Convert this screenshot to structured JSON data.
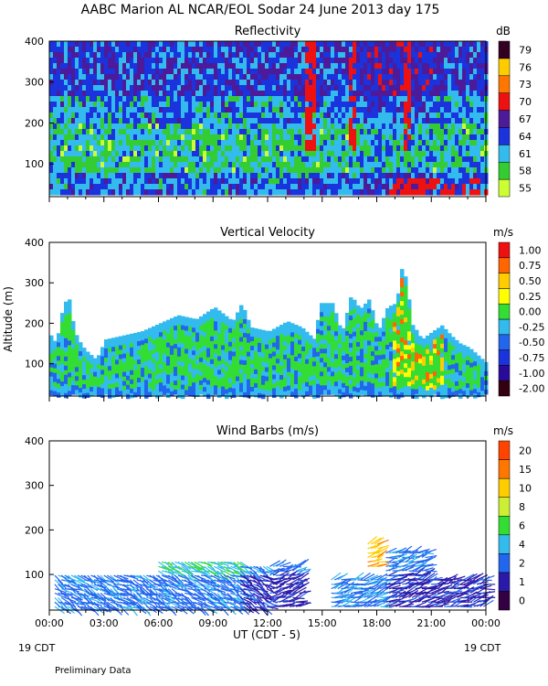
{
  "title": "AABC Marion AL NCAR/EOL Sodar  24 June 2013 day 175",
  "xaxis": {
    "ticks": [
      "00:00",
      "03:00",
      "06:00",
      "09:00",
      "12:00",
      "15:00",
      "18:00",
      "21:00",
      "00:00"
    ],
    "label": "UT  (CDT - 5)",
    "left_date": "19 CDT",
    "right_date": "19 CDT"
  },
  "footer": "Preliminary Data",
  "chart_data": [
    {
      "type": "heatmap",
      "title": "Reflectivity",
      "ylabel": "",
      "yticks": [
        100,
        200,
        300,
        400
      ],
      "ylim": [
        20,
        400
      ],
      "xlim": [
        0,
        24
      ],
      "colorbar": {
        "unit": "dB",
        "labels": [
          "55",
          "58",
          "61",
          "64",
          "67",
          "70",
          "73",
          "76",
          "79"
        ],
        "colors": [
          "#ccff33",
          "#33cc33",
          "#33bbee",
          "#1a33dd",
          "#4d1a99",
          "#ee1111",
          "#ff7700",
          "#ffcc00",
          "#330022"
        ]
      },
      "data_top_m": 400,
      "data_bottom_m": 35
    },
    {
      "type": "heatmap",
      "title": "Vertical Velocity",
      "ylabel": "Altitude (m)",
      "yticks": [
        100,
        200,
        300,
        400
      ],
      "ylim": [
        20,
        400
      ],
      "xlim": [
        0,
        24
      ],
      "colorbar": {
        "unit": "m/s",
        "labels": [
          "-2.00",
          "-1.00",
          "-0.75",
          "-0.50",
          "-0.25",
          "0.00",
          "0.25",
          "0.50",
          "0.75",
          "1.00"
        ],
        "colors": [
          "#330011",
          "#2a0a99",
          "#1a33dd",
          "#2266ee",
          "#33bbee",
          "#33dd33",
          "#ffff00",
          "#ffcc00",
          "#ff6600",
          "#ee1111"
        ]
      },
      "top_profile": {
        "x": [
          0,
          0.3,
          0.7,
          1.0,
          1.3,
          1.7,
          2.0,
          2.5,
          3.0,
          4.0,
          5.0,
          6.0,
          7.0,
          8.0,
          9.0,
          10.0,
          10.5,
          11.0,
          12.0,
          13.0,
          13.8,
          14.5,
          14.8,
          15.5,
          16.0,
          16.5,
          17.0,
          17.5,
          18.0,
          18.5,
          19.0,
          19.3,
          19.6,
          19.8,
          20.0,
          20.4,
          21.0,
          21.5,
          22.0,
          22.5,
          23.0,
          23.5,
          24.0
        ],
        "y": [
          170,
          150,
          250,
          260,
          180,
          145,
          130,
          110,
          160,
          170,
          180,
          200,
          220,
          210,
          240,
          205,
          250,
          190,
          180,
          205,
          190,
          160,
          250,
          250,
          175,
          270,
          235,
          260,
          180,
          240,
          250,
          340,
          300,
          200,
          190,
          160,
          180,
          195,
          170,
          150,
          140,
          120,
          100
        ]
      },
      "data_bottom_m": 25
    },
    {
      "type": "scatter",
      "title": "Wind Barbs (m/s)",
      "ylabel": "",
      "yticks": [
        100,
        200,
        300,
        400
      ],
      "ylim": [
        20,
        400
      ],
      "xlim": [
        0,
        24
      ],
      "colorbar": {
        "unit": "m/s",
        "labels": [
          "0",
          "1",
          "2",
          "4",
          "6",
          "8",
          "10",
          "15",
          "20"
        ],
        "colors": [
          "#330044",
          "#2a1aaa",
          "#2266ee",
          "#33bbee",
          "#33dd33",
          "#ccee33",
          "#ffcc00",
          "#ff7700",
          "#ff4400",
          "#ee1111"
        ]
      },
      "segments": [
        {
          "x0": 0.3,
          "x1": 6.0,
          "top": 100,
          "bottom": 20,
          "speed": 2
        },
        {
          "x0": 6.0,
          "x1": 10.5,
          "top": 130,
          "bottom": 20,
          "speed": 2
        },
        {
          "x0": 10.5,
          "x1": 13.8,
          "top": 120,
          "bottom": 20,
          "speed": 1
        },
        {
          "x0": 15.5,
          "x1": 18.5,
          "top": 90,
          "bottom": 20,
          "speed": 2
        },
        {
          "x0": 17.5,
          "x1": 18.2,
          "top": 170,
          "bottom": 110,
          "speed": 6
        },
        {
          "x0": 18.5,
          "x1": 20.8,
          "top": 150,
          "bottom": 20,
          "speed": 1
        },
        {
          "x0": 20.8,
          "x1": 24.0,
          "top": 90,
          "bottom": 20,
          "speed": 1
        }
      ]
    }
  ]
}
